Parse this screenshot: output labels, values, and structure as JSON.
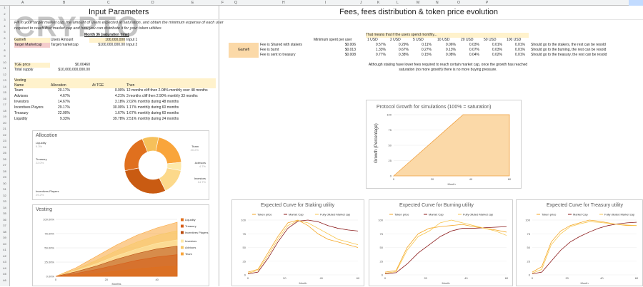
{
  "watermark": "CRYPTO",
  "columns": [
    "A",
    "B",
    "C",
    "D",
    "E",
    "F",
    "Q",
    "H",
    "I",
    "J",
    "K",
    "L",
    "M",
    "N",
    "O",
    "P"
  ],
  "left": {
    "title": "Input Parameters",
    "instructions": "Fill in your target market cap, the amount of users expected at saturation, and obtain the minimum expense of each user required to reach that market cap and how you can distribute it for your token utilities",
    "month36_header": "Month 36 (saturation time)",
    "rows": [
      {
        "label": "Gamefi",
        "sub": "Users Amount",
        "value": "100,000,000",
        "note": "Input 1"
      },
      {
        "label": "Target Marketcap",
        "sub": "Target marketcap",
        "value": "$100,000,000.00",
        "note": "Input 2"
      }
    ],
    "tge_price_label": "TGE price",
    "tge_price": "$0.00460",
    "total_supply_label": "Total supply",
    "total_supply": "$10,000,000,000.00",
    "vesting_title": "Vesting",
    "vesting_headers": [
      "Name",
      "Allocation",
      "At TGE",
      "Then"
    ],
    "vesting_rows": [
      [
        "Team",
        "20.17%",
        "0.00%",
        "12 months cliff then 2.08% monthly over 48 months"
      ],
      [
        "Advisors",
        "4.67%",
        "4.21%",
        "3 months cliff then 2.90% monthly 33 months"
      ],
      [
        "Investors",
        "14.67%",
        "3.18%",
        "2.02% monthly during 48 months"
      ],
      [
        "Incentives Players",
        "29.17%",
        "30.00%",
        "1.17% monthly during 60 months"
      ],
      [
        "Treasury",
        "22.00%",
        "1.67%",
        "1.67% monthly during 60 months"
      ],
      [
        "Liquidity",
        "9.33%",
        "39.78%",
        "2.51% monthly during 24 months"
      ]
    ]
  },
  "right": {
    "title": "Fees, fees distribution & token price evolution",
    "min_spent_header": "Minimum spent per user",
    "users_spend_header": "That means that if the users spend monthly...",
    "spend_cols": [
      "1 USD",
      "2 USD",
      "5 USD",
      "10 USD",
      "20 USD",
      "50 USD",
      "100 USD"
    ],
    "gamefi_label": "Gamefi",
    "fee_rows": [
      {
        "label": "Fee is Shared with stakers",
        "min": "$0.006",
        "vals": [
          "0.57%",
          "0.29%",
          "0.11%",
          "0.06%",
          "0.03%",
          "0.01%",
          "0.01%"
        ],
        "note": "Should go to the stakers, the rest can be resold"
      },
      {
        "label": "Fee is burnt",
        "min": "$0.013",
        "vals": [
          "1.33%",
          "0.67%",
          "0.27%",
          "0.13%",
          "0.07%",
          "0.03%",
          "0.01%"
        ],
        "note": "Should go to the burning, the rest can be resold"
      },
      {
        "label": "Fee is sent to treasury",
        "min": "$0.008",
        "vals": [
          "0.77%",
          "0.38%",
          "0.15%",
          "0.08%",
          "0.04%",
          "0.02%",
          "0.01%"
        ],
        "note": "Should go to the treasury, the rest can be resold"
      }
    ],
    "staking_note": "Although staking have lower fees required to reach certain market cap, once the growth has reached saturation (no more growth) there is no more buying pressure."
  },
  "charts": {
    "allocation": {
      "title": "Allocation",
      "slices": [
        {
          "name": "Team",
          "value": 20.2,
          "pct": "20.2%",
          "color": "#f9a53b"
        },
        {
          "name": "Advisors",
          "value": 4.7,
          "pct": "4.7%",
          "color": "#fde9a9"
        },
        {
          "name": "Investors",
          "value": 14.7,
          "pct": "14.7%",
          "color": "#fcd98b"
        },
        {
          "name": "Incentives Players",
          "value": 29.2,
          "pct": "29.2%",
          "color": "#c95b12"
        },
        {
          "name": "Treasury",
          "value": 22.0,
          "pct": "22.0%",
          "color": "#e0701e"
        },
        {
          "name": "Liquidity",
          "value": 9.3,
          "pct": "9.3%",
          "color": "#f6c05a"
        }
      ]
    },
    "vesting": {
      "title": "Vesting",
      "xlabel": "Months",
      "y_ticks": [
        "100.00%",
        "75.00%",
        "50.00%",
        "25.00%",
        "0.00%"
      ],
      "x_ticks": [
        "0",
        "20",
        "40"
      ],
      "legend": [
        {
          "name": "Liquidity",
          "color": "#e0701e"
        },
        {
          "name": "Treasury",
          "color": "#d65c18"
        },
        {
          "name": "Incentives Players",
          "color": "#b84a0e"
        },
        {
          "name": "Investors",
          "color": "#fde9a9"
        },
        {
          "name": "Advisors",
          "color": "#f7c866"
        },
        {
          "name": "Team",
          "color": "#f9a53b"
        }
      ]
    },
    "growth": {
      "title": "Protocol Growth for simulations (100% = saturation)",
      "ylabel": "Growth (Percentage)",
      "xlabel": "Month",
      "y_ticks": [
        "100",
        "75",
        "50",
        "25",
        "0"
      ],
      "x_ticks": [
        "0",
        "20",
        "40",
        "60"
      ]
    },
    "staking": {
      "title": "Expected Curve for Staking utility",
      "xlabel": "Month"
    },
    "burning": {
      "title": "Expected Curve for Burning utility",
      "xlabel": "Month"
    },
    "treasury": {
      "title": "Expected Curve for Treasury  utility",
      "xlabel": "Month"
    },
    "curve_legend": [
      "Token price",
      "Market Cap",
      "Fully diluted Market cap"
    ],
    "curve_y_ticks": [
      "100",
      "75",
      "50",
      "25",
      "0"
    ],
    "curve_x_ticks": [
      "0",
      "20",
      "40",
      "60"
    ],
    "chart_data": [
      {
        "type": "pie",
        "title": "Allocation",
        "categories": [
          "Team",
          "Advisors",
          "Investors",
          "Incentives Players",
          "Treasury",
          "Liquidity"
        ],
        "values": [
          20.2,
          4.7,
          14.7,
          29.2,
          22.0,
          9.3
        ]
      },
      {
        "type": "line",
        "title": "Protocol Growth for simulations (100% = saturation)",
        "x": [
          0,
          36,
          60
        ],
        "values": [
          0,
          100,
          100
        ],
        "xlabel": "Month",
        "ylabel": "Growth (Percentage)",
        "ylim": [
          0,
          100
        ]
      }
    ]
  }
}
